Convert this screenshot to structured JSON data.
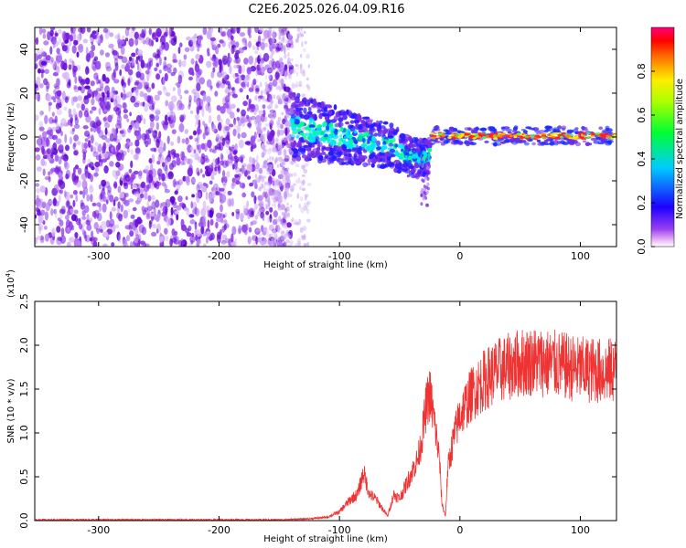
{
  "title": "C2E6.2025.026.04.09.R16",
  "chart_data": [
    {
      "type": "heatmap",
      "xlabel": "Height of straight line (km)",
      "ylabel": "Frequency (Hz)",
      "xlim": [
        -353,
        130
      ],
      "ylim": [
        -50,
        50
      ],
      "xticks": [
        -300,
        -200,
        -100,
        0,
        100
      ],
      "yticks": [
        -40,
        -20,
        0,
        20,
        40
      ],
      "colorbar": {
        "label": "Normalized spectral amplitude",
        "range": [
          0.0,
          1.0
        ],
        "ticks": [
          0.0,
          0.2,
          0.4,
          0.6,
          0.8
        ],
        "tick_labels": [
          "0.0",
          "0.2",
          "0.4",
          "0.6",
          "0.8"
        ],
        "colors": [
          "#ff00ff",
          "#0000ff",
          "#00ffff",
          "#00ff00",
          "#ffff00",
          "#ff0000",
          "#ff0066"
        ]
      },
      "regions": [
        {
          "name": "broadband noise",
          "x": [
            -353,
            -140
          ],
          "f": [
            -50,
            50
          ],
          "amplitude": 0.15
        },
        {
          "name": "narrowing signal",
          "x": [
            -140,
            -25
          ],
          "f_center": [
            5,
            -8
          ],
          "f_width": [
            15,
            8
          ],
          "amplitude": 0.35
        },
        {
          "name": "carrier line",
          "x": [
            -25,
            130
          ],
          "f_center": 0.5,
          "f_width": 3,
          "amplitude": 0.95
        }
      ]
    },
    {
      "type": "line",
      "xlabel": "Height of straight line (km)",
      "ylabel": "SNR (10 * v/v)",
      "y_multiplier": "(x10^4)",
      "xlim": [
        -353,
        130
      ],
      "ylim": [
        0,
        2.5
      ],
      "xticks": [
        -300,
        -200,
        -100,
        0,
        100
      ],
      "yticks": [
        0.0,
        0.5,
        1.0,
        1.5,
        2.0,
        2.5
      ],
      "ytick_labels": [
        "0.0",
        "0.5",
        "1.0",
        "1.5",
        "2.0",
        "2.5"
      ],
      "series": [
        {
          "color": "#ee3333",
          "x": [
            -353,
            -300,
            -200,
            -150,
            -125,
            -110,
            -100,
            -95,
            -90,
            -85,
            -82,
            -80,
            -75,
            -70,
            -65,
            -60,
            -55,
            -50,
            -45,
            -40,
            -35,
            -32,
            -30,
            -28,
            -25,
            -22,
            -20,
            -17,
            -15,
            -12,
            -10,
            -5,
            0,
            10,
            20,
            30,
            40,
            50,
            60,
            70,
            80,
            90,
            100,
            110,
            120,
            130
          ],
          "y": [
            0.01,
            0.01,
            0.01,
            0.01,
            0.02,
            0.04,
            0.1,
            0.18,
            0.25,
            0.3,
            0.45,
            0.55,
            0.3,
            0.25,
            0.15,
            0.05,
            0.3,
            0.25,
            0.4,
            0.55,
            0.7,
            0.9,
            1.1,
            1.3,
            1.45,
            1.2,
            1.0,
            0.7,
            0.2,
            0.05,
            0.6,
            0.95,
            1.2,
            1.45,
            1.6,
            1.7,
            1.75,
            1.8,
            1.82,
            1.8,
            1.78,
            1.75,
            1.72,
            1.72,
            1.7,
            1.72
          ]
        }
      ]
    }
  ]
}
